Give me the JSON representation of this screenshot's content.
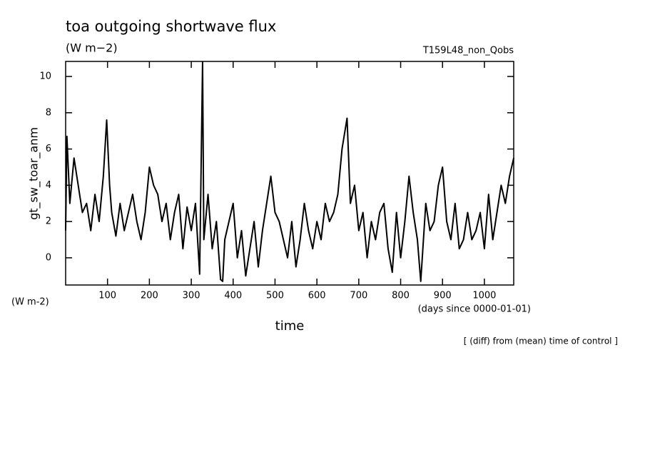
{
  "chart_data": {
    "type": "line",
    "title": "toa outgoing shortwave flux",
    "subtitle": "(W m−2)",
    "run_label": "T159L48_non_Qobs",
    "y_label": "gt_sw_toar_anm",
    "y_unit": "(W m-2)",
    "x_label": "time",
    "x_unit": "(days since 0000-01-01)",
    "note": "[ (diff) from (mean) time of control ]",
    "xlim": [
      0,
      1070
    ],
    "ylim": [
      -1.5,
      10.83
    ],
    "xticks": [
      100,
      200,
      300,
      400,
      500,
      600,
      700,
      800,
      900,
      1000
    ],
    "yticks": [
      0,
      2,
      4,
      6,
      8,
      10
    ],
    "x": [
      0,
      3,
      10,
      20,
      30,
      40,
      50,
      60,
      70,
      80,
      90,
      98,
      105,
      110,
      120,
      130,
      140,
      150,
      160,
      170,
      180,
      190,
      200,
      210,
      220,
      230,
      240,
      250,
      260,
      270,
      280,
      290,
      300,
      310,
      320,
      327,
      330,
      340,
      350,
      360,
      370,
      375,
      380,
      390,
      400,
      410,
      420,
      430,
      440,
      450,
      460,
      470,
      480,
      490,
      500,
      510,
      520,
      530,
      540,
      550,
      560,
      570,
      580,
      590,
      600,
      610,
      620,
      630,
      640,
      650,
      660,
      672,
      680,
      690,
      700,
      710,
      720,
      730,
      740,
      750,
      760,
      770,
      780,
      790,
      800,
      810,
      820,
      830,
      840,
      848,
      860,
      870,
      880,
      890,
      900,
      910,
      920,
      930,
      940,
      950,
      960,
      970,
      980,
      990,
      1000,
      1010,
      1020,
      1030,
      1040,
      1050,
      1060,
      1070
    ],
    "series": [
      {
        "color": "#000000",
        "values": [
          1.5,
          6.7,
          3,
          5.5,
          4,
          2.5,
          3,
          1.5,
          3.5,
          2,
          4.5,
          7.6,
          4,
          2.5,
          1.2,
          3,
          1.5,
          2.5,
          3.5,
          2,
          1,
          2.5,
          5,
          4,
          3.5,
          2,
          3,
          1,
          2.5,
          3.5,
          0.5,
          2.8,
          1.5,
          3,
          -0.9,
          10.8,
          1,
          3.5,
          0.5,
          2,
          -1.2,
          -1.3,
          1,
          2,
          3,
          0,
          1.5,
          -1,
          0.5,
          2,
          -0.5,
          1.5,
          3,
          4.5,
          2.5,
          2,
          1,
          0,
          2,
          -0.5,
          1,
          3,
          1.5,
          0.5,
          2,
          1,
          3,
          2,
          2.5,
          3.5,
          6,
          7.7,
          3,
          4,
          1.5,
          2.5,
          0,
          2,
          1,
          2.5,
          3,
          0.5,
          -0.8,
          2.5,
          0,
          2,
          4.5,
          2.5,
          1,
          -1.3,
          3,
          1.5,
          2,
          4,
          5,
          2,
          1,
          3,
          0.5,
          1,
          2.5,
          1,
          1.5,
          2.5,
          0.5,
          3.5,
          1,
          2.5,
          4,
          3,
          4.5,
          5.5
        ]
      }
    ]
  }
}
